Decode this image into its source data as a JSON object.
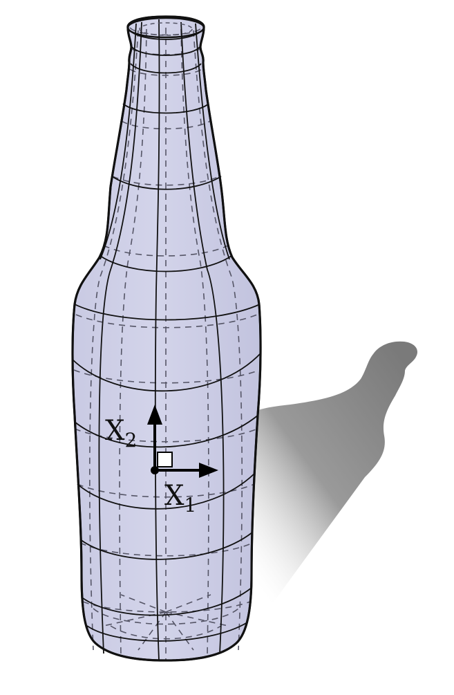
{
  "figure": {
    "axis_x": {
      "symbol": "X",
      "subscript": "1"
    },
    "axis_y": {
      "symbol": "X",
      "subscript": "2"
    },
    "colors": {
      "bottle_fill": "#cfd0e8",
      "outline": "#111111",
      "hidden_lines": "#555566",
      "shadow": "#8a8a8a",
      "background": "#ffffff"
    }
  }
}
